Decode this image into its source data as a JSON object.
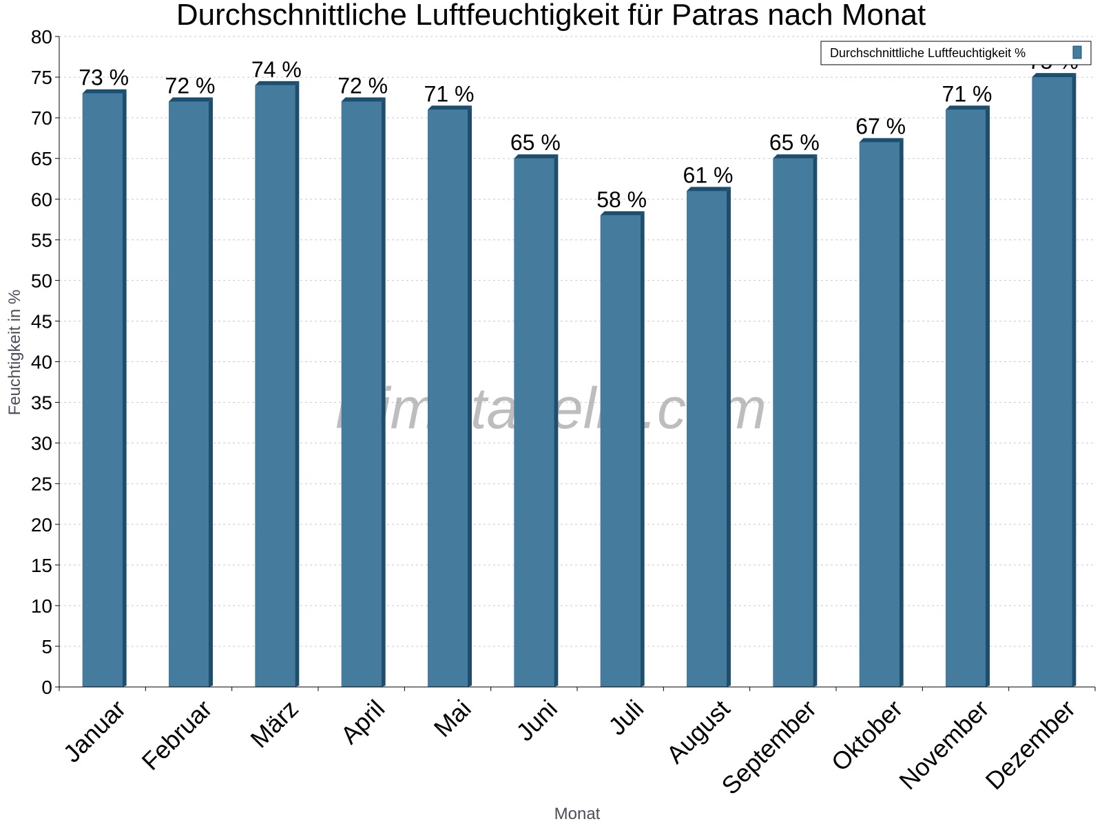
{
  "chart_data": {
    "type": "bar",
    "title": "Durchschnittliche Luftfeuchtigkeit für Patras nach Monat",
    "xlabel": "Monat",
    "ylabel": "Feuchtigkeit in %",
    "ylim": [
      0,
      80
    ],
    "yticks": [
      0,
      5,
      10,
      15,
      20,
      25,
      30,
      35,
      40,
      45,
      50,
      55,
      60,
      65,
      70,
      75,
      80
    ],
    "grid": true,
    "legend_position": "top-right",
    "categories": [
      "Januar",
      "Februar",
      "März",
      "April",
      "Mai",
      "Juni",
      "Juli",
      "August",
      "September",
      "Oktober",
      "November",
      "Dezember"
    ],
    "series": [
      {
        "name": "Durchschnittliche Luftfeuchtigkeit %",
        "values": [
          73,
          72,
          74,
          72,
          71,
          65,
          58,
          61,
          65,
          67,
          71,
          75
        ],
        "labels": [
          "73 %",
          "72 %",
          "74 %",
          "72 %",
          "71 %",
          "65 %",
          "58 %",
          "61 %",
          "65 %",
          "67 %",
          "71 %",
          "75 %"
        ],
        "color": "#457b9d",
        "shade_color": "#1d4e6e"
      }
    ],
    "watermark": "klimatabelle.com"
  }
}
